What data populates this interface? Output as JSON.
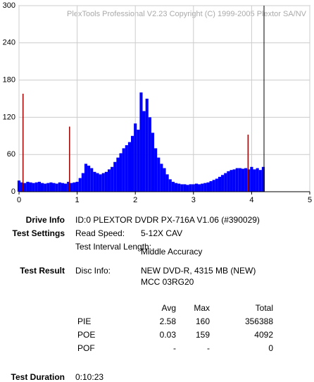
{
  "chart_data": {
    "type": "bar",
    "annotation": "PlexTools Professional V2.23 Copyright (C) 1999-2005 Plextor SA/NV",
    "xlim": [
      0,
      5
    ],
    "xticks": [
      0,
      1,
      2,
      3,
      4,
      5
    ],
    "ylim": [
      0,
      300
    ],
    "yticks": [
      0,
      60,
      120,
      180,
      240,
      300
    ],
    "grid": true,
    "series": [
      {
        "color": "#0000ff",
        "x": [
          0,
          0.05,
          0.1,
          0.15,
          0.2,
          0.25,
          0.3,
          0.35,
          0.4,
          0.45,
          0.5,
          0.55,
          0.6,
          0.65,
          0.7,
          0.75,
          0.8,
          0.85,
          0.9,
          0.95,
          1,
          1.05,
          1.1,
          1.15,
          1.2,
          1.25,
          1.3,
          1.35,
          1.4,
          1.45,
          1.5,
          1.55,
          1.6,
          1.65,
          1.7,
          1.75,
          1.8,
          1.85,
          1.9,
          1.95,
          2,
          2.05,
          2.1,
          2.15,
          2.2,
          2.25,
          2.3,
          2.35,
          2.4,
          2.45,
          2.5,
          2.55,
          2.6,
          2.65,
          2.7,
          2.75,
          2.8,
          2.85,
          2.9,
          2.95,
          3,
          3.05,
          3.1,
          3.15,
          3.2,
          3.25,
          3.3,
          3.35,
          3.4,
          3.45,
          3.5,
          3.55,
          3.6,
          3.65,
          3.7,
          3.75,
          3.8,
          3.85,
          3.9,
          3.95,
          4,
          4.05,
          4.1,
          4.15,
          4.2
        ],
        "values": [
          18,
          15,
          14,
          16,
          15,
          14,
          15,
          16,
          14,
          13,
          14,
          15,
          14,
          13,
          15,
          14,
          13,
          16,
          14,
          15,
          16,
          22,
          30,
          45,
          42,
          38,
          32,
          30,
          28,
          30,
          32,
          36,
          40,
          48,
          55,
          62,
          70,
          75,
          80,
          90,
          110,
          100,
          160,
          130,
          150,
          120,
          95,
          70,
          55,
          45,
          38,
          28,
          20,
          16,
          14,
          13,
          12,
          12,
          11,
          12,
          12,
          13,
          12,
          13,
          14,
          15,
          17,
          19,
          21,
          24,
          27,
          30,
          33,
          35,
          36,
          38,
          38,
          37,
          38,
          36,
          40,
          36,
          38,
          35,
          40
        ]
      },
      {
        "color": "#990000",
        "x": [
          0.18,
          0.98,
          4.05
        ],
        "values": [
          158,
          105,
          92
        ]
      }
    ]
  },
  "info": {
    "drive_label": "Drive Info",
    "drive": "ID:0 PLEXTOR DVDR PX-716A V1.06 (#390029)",
    "settings_label": "Test Settings",
    "speed_label": "Read Speed:",
    "speed": "5-12X CAV",
    "interval_label": "Test Interval Length:",
    "interval": "Middle Accuracy",
    "result_label": "Test Result",
    "disc_label": "Disc Info:",
    "disc": "NEW DVD-R, 4315 MB (NEW)",
    "disc_id": "MCC 03RG20",
    "stats": {
      "header": [
        "Avg",
        "Max",
        "Total"
      ],
      "rows": [
        [
          "PIE",
          "2.58",
          "160",
          "356388"
        ],
        [
          "POE",
          "0.03",
          "159",
          "4092"
        ],
        [
          "POF",
          "-",
          "-",
          "0"
        ]
      ]
    },
    "duration_label": "Test Duration",
    "duration": "0:10:23"
  }
}
